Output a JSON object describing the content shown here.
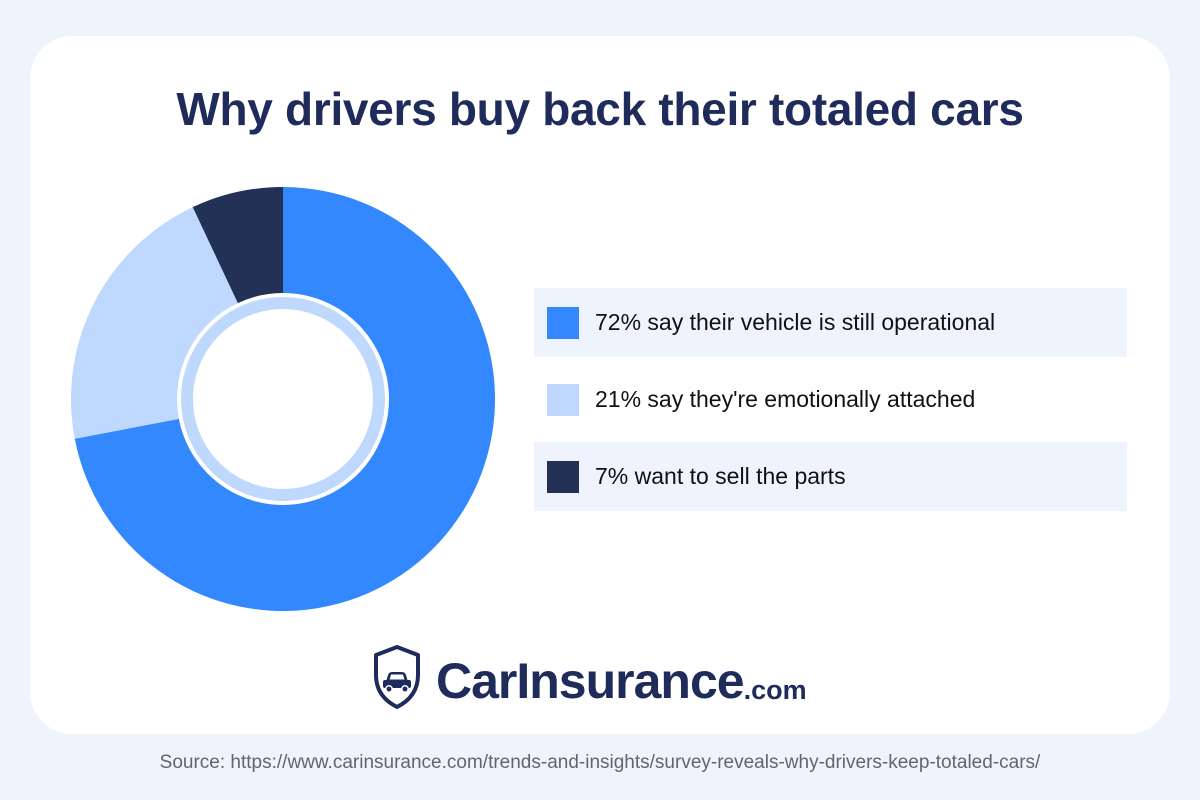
{
  "title": "Why drivers buy back their totaled cars",
  "chart_data": {
    "type": "pie",
    "categories": [
      "72% say their vehicle is still operational",
      "21% say they're emotionally attached",
      "7% want to sell the parts"
    ],
    "values": [
      72,
      21,
      7
    ],
    "colors": [
      "#3388fd",
      "#bfd8fd",
      "#243157"
    ],
    "inner_ring_color": "#bfd8fd",
    "title": "Why drivers buy back their totaled cars",
    "legend_placement": "right"
  },
  "legend": {
    "items": [
      {
        "label": "72% say their vehicle is still operational",
        "color": "#3388fd"
      },
      {
        "label": "21% say they're emotionally attached",
        "color": "#bfd8fd"
      },
      {
        "label": "7% want to sell the parts",
        "color": "#243157"
      }
    ]
  },
  "brand": {
    "name": "CarInsurance",
    "tld": ".com",
    "logo_icon": "shield-car-icon",
    "color": "#1f2b5b"
  },
  "source": "Source: https://www.carinsurance.com/trends-and-insights/survey-reveals-why-drivers-keep-totaled-cars/"
}
